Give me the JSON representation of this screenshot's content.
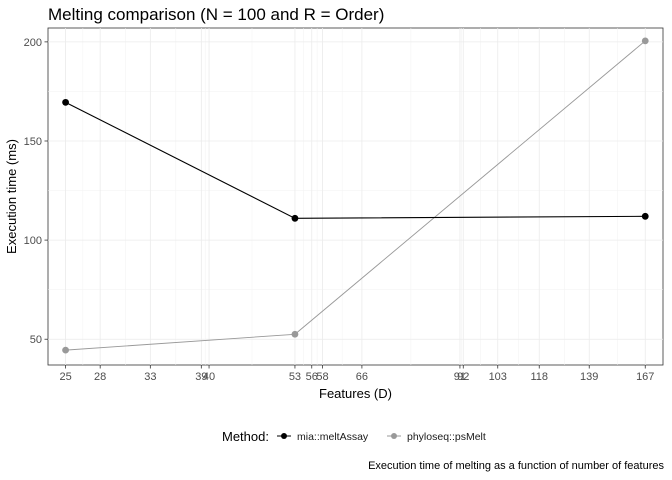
{
  "chart_data": {
    "type": "line",
    "title": "Melting comparison (N = 100 and R = Order)",
    "xlabel": "Features (D)",
    "ylabel": "Execution time (ms)",
    "caption": "Execution time of melting as a function of number of features",
    "x_scale": "log",
    "xlim": [
      23.6,
      177
    ],
    "ylim": [
      37,
      207
    ],
    "x_ticks": [
      25,
      28,
      33,
      39,
      40,
      53,
      56,
      58,
      66,
      91,
      92,
      103,
      118,
      139,
      167
    ],
    "x_tick_labels": [
      "25",
      "28",
      "33",
      "39",
      "40",
      "53",
      "56",
      "58",
      "66",
      "91",
      "92",
      "103",
      "118",
      "139",
      "167"
    ],
    "y_ticks": [
      50,
      100,
      150,
      200
    ],
    "y_tick_labels": [
      "50",
      "100",
      "150",
      "200"
    ],
    "grid": true,
    "legend_title": "Method:",
    "legend_position": "bottom",
    "series": [
      {
        "name": "mia::meltAssay",
        "color": "#000000",
        "x": [
          25,
          53,
          167
        ],
        "y": [
          169.5,
          111,
          112
        ]
      },
      {
        "name": "phyloseq::psMelt",
        "color": "#999999",
        "x": [
          25,
          53,
          167
        ],
        "y": [
          44.5,
          52.5,
          200.5
        ]
      }
    ]
  }
}
